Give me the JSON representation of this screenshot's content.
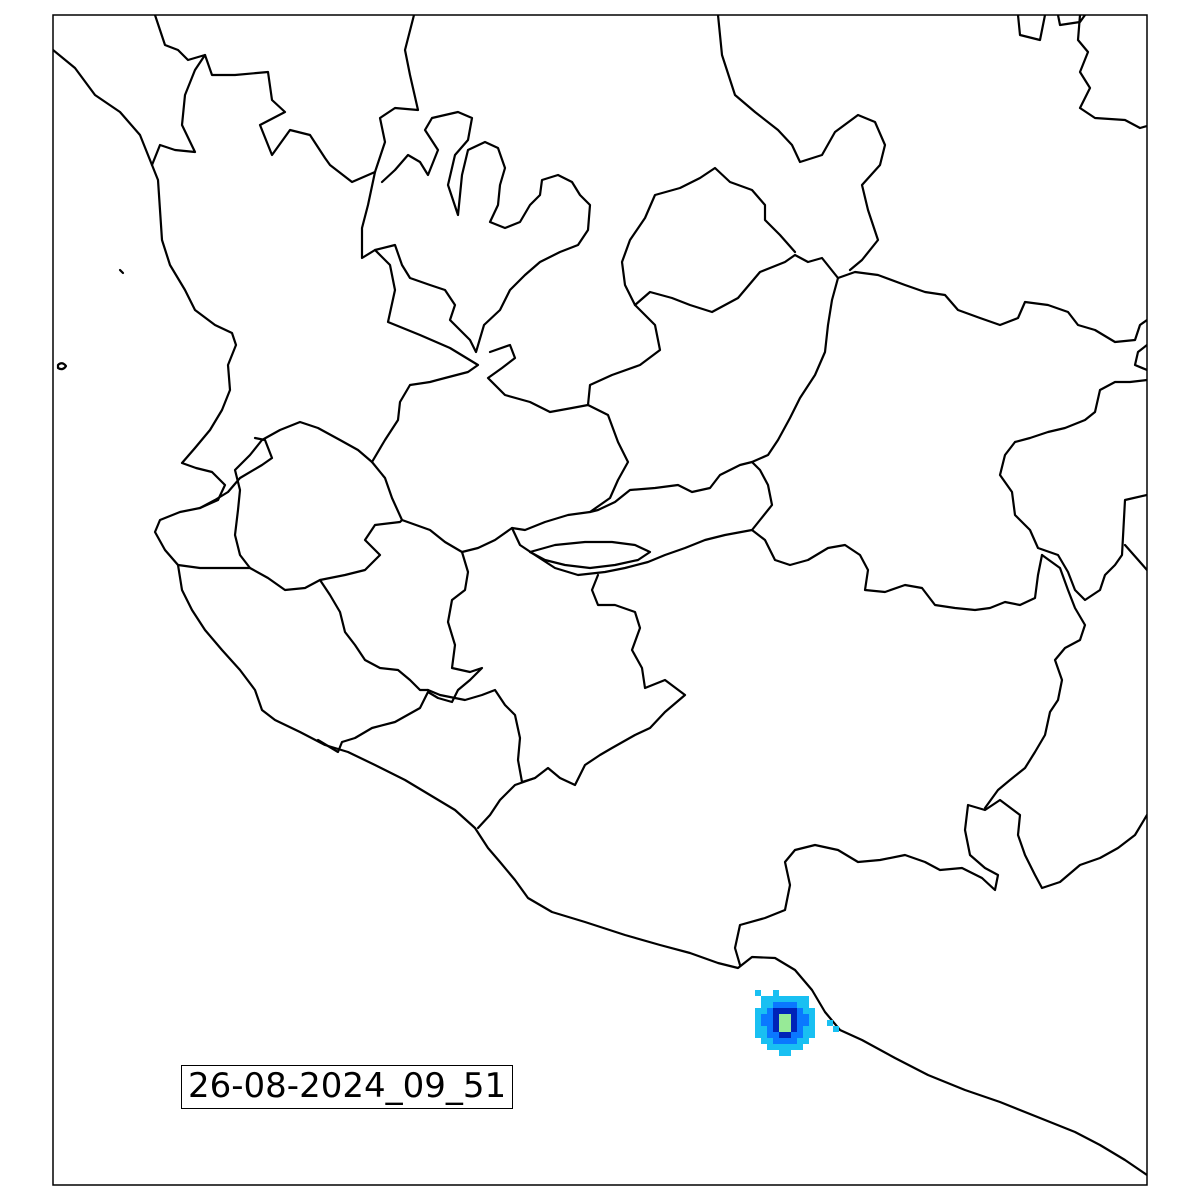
{
  "map": {
    "timestamp": "26-08-2024_09_51",
    "background_color": "#ffffff",
    "border_color": "#000000",
    "radar_palette": {
      "light": "#19c0f2",
      "mid": "#0a78ff",
      "strong": "#0023b8",
      "core": "#97ea97"
    }
  }
}
